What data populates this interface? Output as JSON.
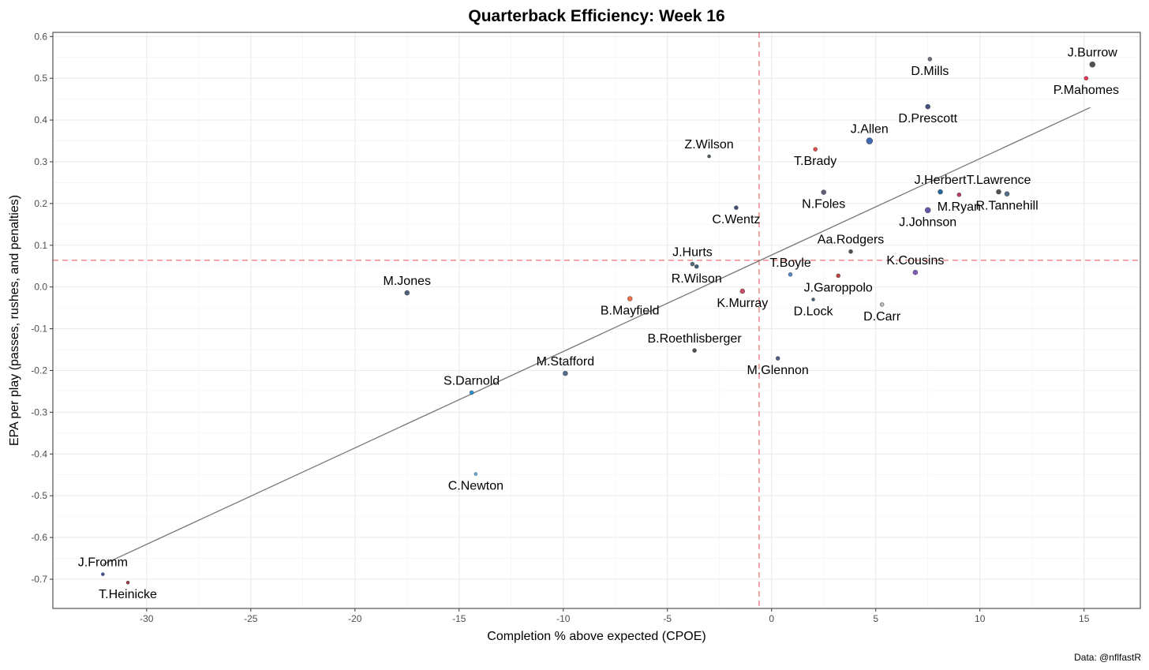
{
  "chart_data": {
    "type": "scatter",
    "title": "Quarterback Efficiency: Week 16",
    "xlabel": "Completion % above expected (CPOE)",
    "ylabel": "EPA per play (passes, rushes, and penalties)",
    "caption": "Data: @nflfastR",
    "xlim": [
      -34.5,
      17.7
    ],
    "ylim": [
      -0.77,
      0.61
    ],
    "x_ticks": [
      -30,
      -25,
      -20,
      -15,
      -10,
      -5,
      0,
      5,
      10,
      15
    ],
    "x_tick_labels": [
      "-30",
      "-25",
      "-20",
      "-15",
      "-10",
      "-5",
      "0",
      "5",
      "10",
      "15"
    ],
    "y_ticks": [
      -0.7,
      -0.6,
      -0.5,
      -0.4,
      -0.3,
      -0.2,
      -0.1,
      0.0,
      0.1,
      0.2,
      0.3,
      0.4,
      0.5,
      0.6
    ],
    "y_tick_labels": [
      "-0.7",
      "-0.6",
      "-0.5",
      "-0.4",
      "-0.3",
      "-0.2",
      "-0.1",
      "0.0",
      "0.1",
      "0.2",
      "0.3",
      "0.4",
      "0.5",
      "0.6"
    ],
    "grid": true,
    "reference_lines": {
      "x_mean": -0.6,
      "y_mean": 0.064,
      "color": "#f08080"
    },
    "trend_line": {
      "x": [
        -32.1,
        15.3
      ],
      "y": [
        -0.665,
        0.43
      ],
      "color": "#777777"
    },
    "points": [
      {
        "name": "J.Burrow",
        "x": 15.4,
        "y": 0.533,
        "color": "#333333",
        "size": 3.5,
        "label_pos": "above"
      },
      {
        "name": "P.Mahomes",
        "x": 15.1,
        "y": 0.5,
        "color": "#e31837",
        "size": 2.5,
        "label_pos": "below"
      },
      {
        "name": "D.Mills",
        "x": 7.6,
        "y": 0.546,
        "color": "#555566",
        "size": 2.5,
        "label_pos": "below"
      },
      {
        "name": "D.Prescott",
        "x": 7.5,
        "y": 0.432,
        "color": "#223366",
        "size": 3,
        "label_pos": "below"
      },
      {
        "name": "J.Allen",
        "x": 4.7,
        "y": 0.35,
        "color": "#1d4fa0",
        "size": 4,
        "label_pos": "above"
      },
      {
        "name": "T.Brady",
        "x": 2.1,
        "y": 0.33,
        "color": "#e0302a",
        "size": 2.5,
        "label_pos": "below"
      },
      {
        "name": "Z.Wilson",
        "x": -3.0,
        "y": 0.313,
        "color": "#334433",
        "size": 2,
        "label_pos": "above"
      },
      {
        "name": "J.Herbert",
        "x": 8.1,
        "y": 0.228,
        "color": "#004c8c",
        "size": 3,
        "label_pos": "above"
      },
      {
        "name": "T.Lawrence",
        "x": 10.9,
        "y": 0.228,
        "color": "#333333",
        "size": 3,
        "label_pos": "above"
      },
      {
        "name": "R.Tannehill",
        "x": 11.3,
        "y": 0.223,
        "color": "#3a5577",
        "size": 3,
        "label_pos": "below"
      },
      {
        "name": "M.Ryan",
        "x": 9.0,
        "y": 0.221,
        "color": "#b01840",
        "size": 2.5,
        "label_pos": "below"
      },
      {
        "name": "N.Foles",
        "x": 2.5,
        "y": 0.227,
        "color": "#444466",
        "size": 3,
        "label_pos": "below"
      },
      {
        "name": "J.Johnson",
        "x": 7.5,
        "y": 0.184,
        "color": "#4a3a9a",
        "size": 3.5,
        "label_pos": "below"
      },
      {
        "name": "C.Wentz",
        "x": -1.7,
        "y": 0.19,
        "color": "#223366",
        "size": 2.5,
        "label_pos": "below"
      },
      {
        "name": "Aa.Rodgers",
        "x": 3.8,
        "y": 0.085,
        "color": "#333333",
        "size": 2.5,
        "label_pos": "above"
      },
      {
        "name": "K.Cousins",
        "x": 6.9,
        "y": 0.035,
        "color": "#6a3fb0",
        "size": 3,
        "label_pos": "above"
      },
      {
        "name": "J.Hurts",
        "x": -3.8,
        "y": 0.055,
        "color": "#335566",
        "size": 2.5,
        "label_pos": "above"
      },
      {
        "name": "R.Wilson",
        "x": -3.6,
        "y": 0.049,
        "color": "#224466",
        "size": 2.5,
        "label_pos": "below"
      },
      {
        "name": "T.Boyle",
        "x": 0.9,
        "y": 0.03,
        "color": "#3b78c0",
        "size": 2.5,
        "label_pos": "above"
      },
      {
        "name": "J.Garoppolo",
        "x": 3.2,
        "y": 0.027,
        "color": "#b22222",
        "size": 2.5,
        "label_pos": "below"
      },
      {
        "name": "K.Murray",
        "x": -1.4,
        "y": -0.01,
        "color": "#c0304a",
        "size": 3,
        "label_pos": "below"
      },
      {
        "name": "D.Lock",
        "x": 2.0,
        "y": -0.03,
        "color": "#334466",
        "size": 2,
        "label_pos": "below"
      },
      {
        "name": "D.Carr",
        "x": 5.3,
        "y": -0.042,
        "color": "#aaaaaa",
        "size": 2.5,
        "label_pos": "below"
      },
      {
        "name": "M.Jones",
        "x": -17.5,
        "y": -0.014,
        "color": "#334466",
        "size": 3,
        "label_pos": "above"
      },
      {
        "name": "B.Mayfield",
        "x": -6.8,
        "y": -0.028,
        "color": "#f05a28",
        "size": 3,
        "label_pos": "below"
      },
      {
        "name": "B.Roethlisberger",
        "x": -3.7,
        "y": -0.152,
        "color": "#333333",
        "size": 2.5,
        "label_pos": "above"
      },
      {
        "name": "M.Glennon",
        "x": 0.3,
        "y": -0.171,
        "color": "#334477",
        "size": 2.5,
        "label_pos": "below"
      },
      {
        "name": "M.Stafford",
        "x": -9.9,
        "y": -0.207,
        "color": "#335577",
        "size": 3,
        "label_pos": "above"
      },
      {
        "name": "S.Darnold",
        "x": -14.4,
        "y": -0.253,
        "color": "#0a85d0",
        "size": 2.5,
        "label_pos": "above"
      },
      {
        "name": "C.Newton",
        "x": -14.2,
        "y": -0.448,
        "color": "#4aa3df",
        "size": 2,
        "label_pos": "below"
      },
      {
        "name": "J.Fromm",
        "x": -32.1,
        "y": -0.688,
        "color": "#223388",
        "size": 2,
        "label_pos": "above"
      },
      {
        "name": "T.Heinicke",
        "x": -30.9,
        "y": -0.708,
        "color": "#8b1a2a",
        "size": 2,
        "label_pos": "below"
      }
    ]
  }
}
